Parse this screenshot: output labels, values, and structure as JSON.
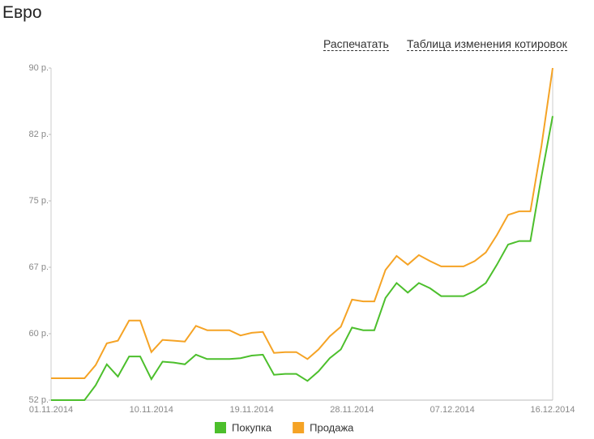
{
  "header": {
    "title": "Евро",
    "links": [
      "Распечатать",
      "Таблица изменения котировок"
    ]
  },
  "chart_data": {
    "type": "line",
    "categories": [
      "01.11.2014",
      null,
      null,
      null,
      null,
      null,
      null,
      null,
      null,
      "10.11.2014",
      null,
      null,
      null,
      null,
      null,
      null,
      null,
      null,
      "19.11.2014",
      null,
      null,
      null,
      null,
      null,
      null,
      null,
      null,
      "28.11.2014",
      null,
      null,
      null,
      null,
      null,
      null,
      null,
      null,
      "07.12.2014",
      null,
      null,
      null,
      null,
      null,
      null,
      null,
      null,
      "16.12.2014"
    ],
    "series": [
      {
        "name": "Покупка",
        "color": "#4cbf2c",
        "values": [
          52.0,
          52.0,
          52.0,
          52.0,
          53.7,
          56.1,
          54.7,
          57.0,
          57.0,
          54.4,
          56.4,
          56.3,
          56.1,
          57.2,
          56.7,
          56.7,
          56.7,
          56.8,
          57.1,
          57.2,
          54.9,
          55.0,
          55.0,
          54.2,
          55.3,
          56.8,
          57.8,
          60.3,
          60.0,
          60.0,
          63.7,
          65.4,
          64.3,
          65.4,
          64.8,
          63.9,
          63.9,
          63.9,
          64.5,
          65.4,
          67.5,
          69.8,
          70.2,
          70.2,
          77.6,
          84.5
        ]
      },
      {
        "name": "Продажа",
        "color": "#f5a325",
        "values": [
          54.5,
          54.5,
          54.5,
          54.5,
          56.0,
          58.5,
          58.8,
          61.1,
          61.1,
          57.5,
          58.9,
          58.8,
          58.7,
          60.5,
          60.0,
          60.0,
          60.0,
          59.4,
          59.7,
          59.8,
          57.4,
          57.5,
          57.5,
          56.7,
          57.8,
          59.3,
          60.4,
          63.5,
          63.3,
          63.3,
          66.9,
          68.5,
          67.5,
          68.6,
          67.9,
          67.3,
          67.3,
          67.3,
          67.9,
          68.9,
          70.9,
          73.2,
          73.6,
          73.6,
          81.1,
          90.0
        ]
      }
    ],
    "ylim": [
      52,
      90
    ],
    "yticks": [
      {
        "value": 52,
        "label": "52 р."
      },
      {
        "value": 59.6,
        "label": "60 р."
      },
      {
        "value": 67.2,
        "label": "67 р."
      },
      {
        "value": 74.8,
        "label": "75 р."
      },
      {
        "value": 82.4,
        "label": "82 р."
      },
      {
        "value": 90,
        "label": "90 р."
      }
    ]
  }
}
